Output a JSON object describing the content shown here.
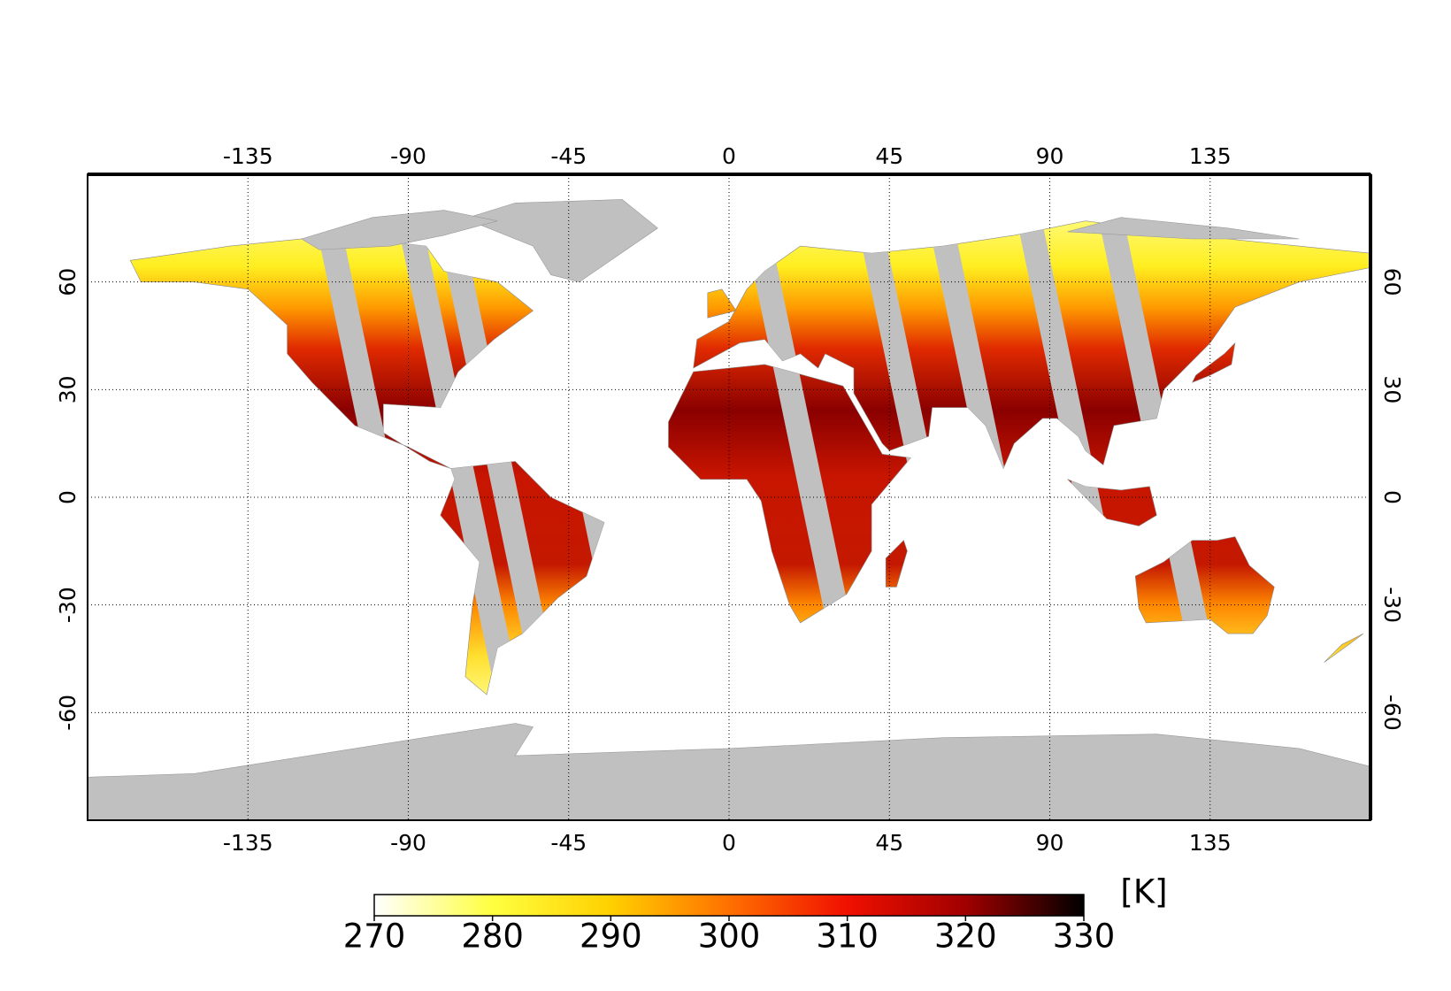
{
  "chart_data": {
    "type": "map",
    "xlim": [
      -180,
      180
    ],
    "ylim": [
      -90,
      90
    ],
    "xticks": [
      -135,
      -90,
      -45,
      0,
      45,
      90,
      135
    ],
    "yticks": [
      -60,
      -30,
      0,
      30,
      60
    ],
    "grid": true,
    "colorbar": {
      "label": "[K]",
      "lim": [
        270,
        330
      ],
      "ticks": [
        270,
        280,
        290,
        300,
        310,
        320,
        330
      ],
      "colors": [
        "#ffffff",
        "#ffff40",
        "#ffd000",
        "#ff7000",
        "#f01000",
        "#a00000",
        "#000000"
      ]
    }
  }
}
